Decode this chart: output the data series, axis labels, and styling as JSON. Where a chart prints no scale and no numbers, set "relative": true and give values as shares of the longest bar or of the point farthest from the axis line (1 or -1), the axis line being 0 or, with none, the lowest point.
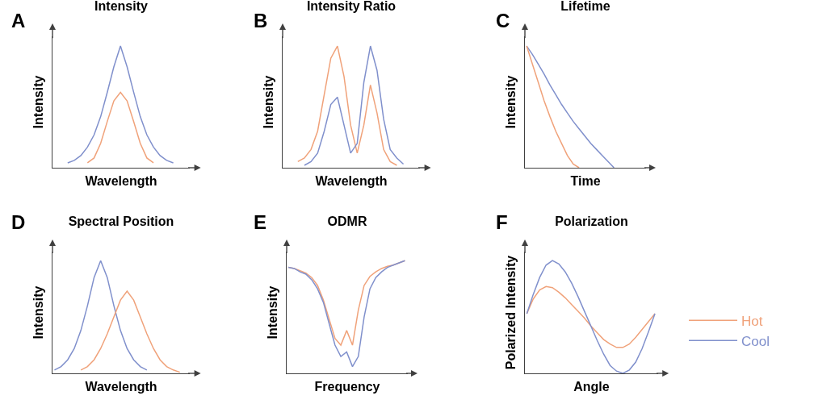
{
  "chart_data": [
    {
      "type": "line",
      "relative": true,
      "title": "Intensity",
      "xlabel": "Wavelength",
      "ylabel": "Intensity",
      "annotations": [
        "A"
      ],
      "categories": [
        null,
        null,
        null,
        null,
        null,
        null,
        null,
        null,
        null,
        null,
        null,
        null,
        null,
        null,
        null,
        null,
        null,
        null,
        null,
        null,
        null
      ],
      "series": [
        {
          "color": "#8090cc",
          "values": [
            null,
            null,
            0.04,
            0.06,
            0.1,
            0.17,
            0.27,
            0.42,
            0.62,
            0.83,
            1,
            0.83,
            0.62,
            0.42,
            0.27,
            0.17,
            0.1,
            0.06,
            0.04,
            null,
            null
          ]
        },
        {
          "color": "#f0a27a",
          "values": [
            null,
            null,
            null,
            null,
            null,
            0.04,
            0.08,
            0.2,
            0.38,
            0.55,
            0.62,
            0.55,
            0.38,
            0.2,
            0.08,
            0.04,
            null,
            null,
            null,
            null,
            null
          ]
        }
      ]
    },
    {
      "type": "line",
      "relative": true,
      "title": "Intensity Ratio",
      "xlabel": "Wavelength",
      "ylabel": "Intensity",
      "annotations": [
        "B"
      ],
      "categories": [
        null,
        null,
        null,
        null,
        null,
        null,
        null,
        null,
        null,
        null,
        null,
        null,
        null,
        null,
        null,
        null,
        null,
        null,
        null,
        null,
        null
      ],
      "series": [
        {
          "color": "#f0a27a",
          "values": [
            null,
            null,
            0.05,
            0.08,
            0.15,
            0.3,
            0.6,
            0.9,
            1,
            0.75,
            0.35,
            0.12,
            0.35,
            0.68,
            0.45,
            0.15,
            0.05,
            0.02,
            null,
            null,
            null
          ]
        },
        {
          "color": "#8090cc",
          "values": [
            null,
            null,
            null,
            0.02,
            0.05,
            0.12,
            0.3,
            0.52,
            0.58,
            0.35,
            0.12,
            0.2,
            0.7,
            1,
            0.8,
            0.4,
            0.15,
            0.08,
            0.03,
            null,
            null
          ]
        }
      ]
    },
    {
      "type": "line",
      "relative": true,
      "title": "Lifetime",
      "xlabel": "Time",
      "ylabel": "Intensity",
      "annotations": [
        "C"
      ],
      "categories": [
        null,
        null,
        null,
        null,
        null,
        null,
        null,
        null,
        null,
        null,
        null,
        null,
        null,
        null,
        null,
        null,
        null,
        null,
        null,
        null,
        null
      ],
      "series": [
        {
          "color": "#8090cc",
          "values": [
            1,
            0.93,
            0.85,
            0.77,
            0.68,
            0.6,
            0.52,
            0.45,
            0.38,
            0.32,
            0.26,
            0.2,
            0.15,
            0.1,
            0.05,
            0,
            null,
            null,
            null,
            null,
            null
          ]
        },
        {
          "color": "#f0a27a",
          "values": [
            1,
            0.85,
            0.7,
            0.55,
            0.42,
            0.3,
            0.2,
            0.1,
            0.03,
            0,
            null,
            null,
            null,
            null,
            null,
            null,
            null,
            null,
            null,
            null,
            null
          ]
        }
      ]
    },
    {
      "type": "line",
      "relative": true,
      "title": "Spectral Position",
      "xlabel": "Wavelength",
      "ylabel": "Intensity",
      "annotations": [
        "D"
      ],
      "categories": [
        null,
        null,
        null,
        null,
        null,
        null,
        null,
        null,
        null,
        null,
        null,
        null,
        null,
        null,
        null,
        null,
        null,
        null,
        null,
        null,
        null
      ],
      "series": [
        {
          "color": "#8090cc",
          "values": [
            0.03,
            0.06,
            0.12,
            0.22,
            0.38,
            0.6,
            0.85,
            1,
            0.85,
            0.6,
            0.38,
            0.22,
            0.12,
            0.06,
            0.03,
            null,
            null,
            null,
            null,
            null,
            null
          ]
        },
        {
          "color": "#f0a27a",
          "values": [
            null,
            null,
            null,
            null,
            0.03,
            0.06,
            0.12,
            0.22,
            0.35,
            0.5,
            0.65,
            0.73,
            0.65,
            0.5,
            0.35,
            0.22,
            0.12,
            0.06,
            0.03,
            0.01,
            null
          ]
        }
      ]
    },
    {
      "type": "line",
      "relative": true,
      "title": "ODMR",
      "xlabel": "Frequency",
      "ylabel": "Intensity",
      "annotations": [
        "E"
      ],
      "categories": [
        null,
        null,
        null,
        null,
        null,
        null,
        null,
        null,
        null,
        null,
        null,
        null,
        null,
        null,
        null,
        null,
        null,
        null,
        null,
        null,
        null
      ],
      "series": [
        {
          "color": "#f0a27a",
          "values": [
            0.94,
            0.93,
            0.91,
            0.89,
            0.85,
            0.78,
            0.65,
            0.48,
            0.31,
            0.25,
            0.38,
            0.25,
            0.56,
            0.78,
            0.86,
            0.9,
            0.93,
            0.95,
            0.96,
            0.98,
            1
          ]
        },
        {
          "color": "#8090cc",
          "values": [
            0.94,
            0.93,
            0.9,
            0.88,
            0.83,
            0.75,
            0.63,
            0.44,
            0.25,
            0.15,
            0.19,
            0.06,
            0.15,
            0.5,
            0.75,
            0.85,
            0.9,
            0.94,
            0.96,
            0.98,
            1
          ]
        }
      ]
    },
    {
      "type": "line",
      "relative": true,
      "title": "Polarization",
      "xlabel": "Angle",
      "ylabel": "Polarized Intensity",
      "annotations": [
        "F"
      ],
      "legend": "right",
      "categories": [
        null,
        null,
        null,
        null,
        null,
        null,
        null,
        null,
        null,
        null,
        null,
        null,
        null,
        null,
        null,
        null,
        null,
        null,
        null,
        null,
        null
      ],
      "series": [
        {
          "name": "Hot",
          "color": "#f0a27a",
          "values": [
            0.53,
            0.66,
            0.74,
            0.77,
            0.76,
            0.72,
            0.67,
            0.61,
            0.55,
            0.49,
            0.42,
            0.36,
            0.3,
            0.26,
            0.23,
            0.23,
            0.26,
            0.32,
            0.39,
            0.46,
            0.53
          ]
        },
        {
          "name": "Cool",
          "color": "#8090cc",
          "values": [
            0.53,
            0.7,
            0.85,
            0.96,
            1,
            0.97,
            0.9,
            0.8,
            0.68,
            0.55,
            0.42,
            0.29,
            0.17,
            0.07,
            0.02,
            0,
            0.03,
            0.1,
            0.22,
            0.37,
            0.53
          ]
        }
      ]
    }
  ]
}
